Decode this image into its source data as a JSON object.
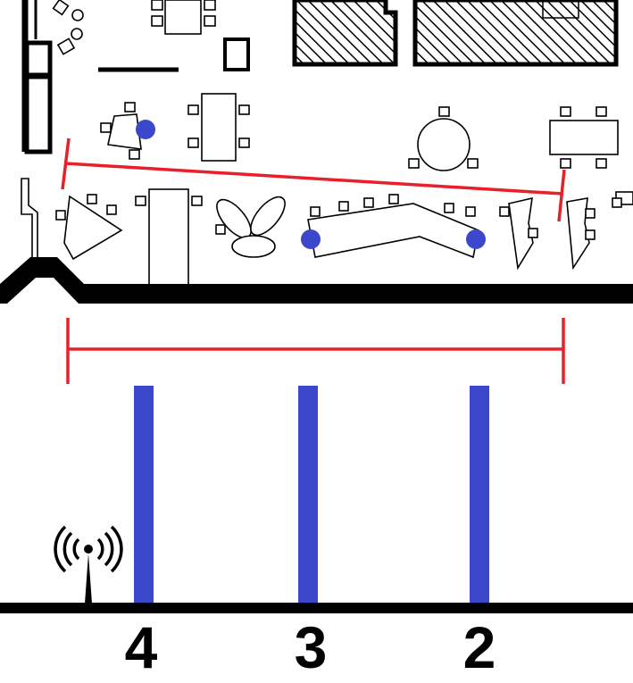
{
  "colors": {
    "ink": "#000000",
    "paper": "#ffffff",
    "measure": "#e8202a",
    "marker": "#3b48cc"
  },
  "icons": {
    "antenna": "wifi-antenna-icon"
  },
  "legend": {
    "labels": [
      "4",
      "3",
      "2"
    ]
  }
}
